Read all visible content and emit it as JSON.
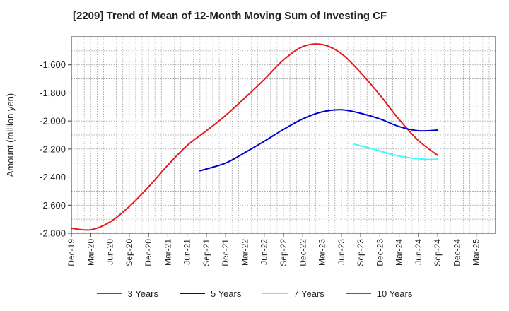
{
  "chart_data": {
    "type": "line",
    "title": "[2209]  Trend of Mean of 12-Month Moving Sum of Investing CF",
    "xlabel": "",
    "ylabel": "Amount (million yen)",
    "ylim": [
      -2800,
      -1400
    ],
    "yticks": [
      -2800,
      -2600,
      -2400,
      -2200,
      -2000,
      -1800,
      -1600
    ],
    "ytick_labels": [
      "-2,800",
      "-2,600",
      "-2,400",
      "-2,200",
      "-2,000",
      "-1,800",
      "-1,600"
    ],
    "x_range": [
      0,
      66
    ],
    "x_ticks": [
      {
        "i": 0,
        "label": "Dec-19"
      },
      {
        "i": 3,
        "label": "Mar-20"
      },
      {
        "i": 6,
        "label": "Jun-20"
      },
      {
        "i": 9,
        "label": "Sep-20"
      },
      {
        "i": 12,
        "label": "Dec-20"
      },
      {
        "i": 15,
        "label": "Mar-21"
      },
      {
        "i": 18,
        "label": "Jun-21"
      },
      {
        "i": 21,
        "label": "Sep-21"
      },
      {
        "i": 24,
        "label": "Dec-21"
      },
      {
        "i": 27,
        "label": "Mar-22"
      },
      {
        "i": 30,
        "label": "Jun-22"
      },
      {
        "i": 33,
        "label": "Sep-22"
      },
      {
        "i": 36,
        "label": "Dec-22"
      },
      {
        "i": 39,
        "label": "Mar-23"
      },
      {
        "i": 42,
        "label": "Jun-23"
      },
      {
        "i": 45,
        "label": "Sep-23"
      },
      {
        "i": 48,
        "label": "Dec-23"
      },
      {
        "i": 51,
        "label": "Mar-24"
      },
      {
        "i": 54,
        "label": "Jun-24"
      },
      {
        "i": 57,
        "label": "Sep-24"
      },
      {
        "i": 60,
        "label": "Dec-24"
      },
      {
        "i": 63,
        "label": "Mar-25"
      }
    ],
    "grid": true,
    "legend_position": "bottom",
    "series": [
      {
        "name": "3 Years",
        "color": "#e41a1c",
        "x": [
          0,
          3,
          6,
          9,
          12,
          15,
          18,
          21,
          24,
          27,
          30,
          33,
          36,
          39,
          42,
          45,
          48,
          51,
          54,
          57
        ],
        "values": [
          -2765,
          -2775,
          -2720,
          -2610,
          -2470,
          -2315,
          -2175,
          -2070,
          -1960,
          -1835,
          -1705,
          -1565,
          -1470,
          -1455,
          -1520,
          -1655,
          -1815,
          -1990,
          -2140,
          -2245
        ]
      },
      {
        "name": "5 Years",
        "color": "#0000cc",
        "x": [
          20,
          24,
          27,
          30,
          33,
          36,
          39,
          42,
          45,
          48,
          51,
          54,
          57
        ],
        "values": [
          -2355,
          -2300,
          -2225,
          -2145,
          -2060,
          -1985,
          -1935,
          -1920,
          -1945,
          -1985,
          -2040,
          -2070,
          -2065
        ]
      },
      {
        "name": "7 Years",
        "color": "#33ffff",
        "x": [
          44,
          47,
          50,
          53,
          56,
          57
        ],
        "values": [
          -2165,
          -2200,
          -2240,
          -2265,
          -2275,
          -2270
        ]
      },
      {
        "name": "10 Years",
        "color": "#228b22",
        "x": [],
        "values": []
      }
    ]
  }
}
